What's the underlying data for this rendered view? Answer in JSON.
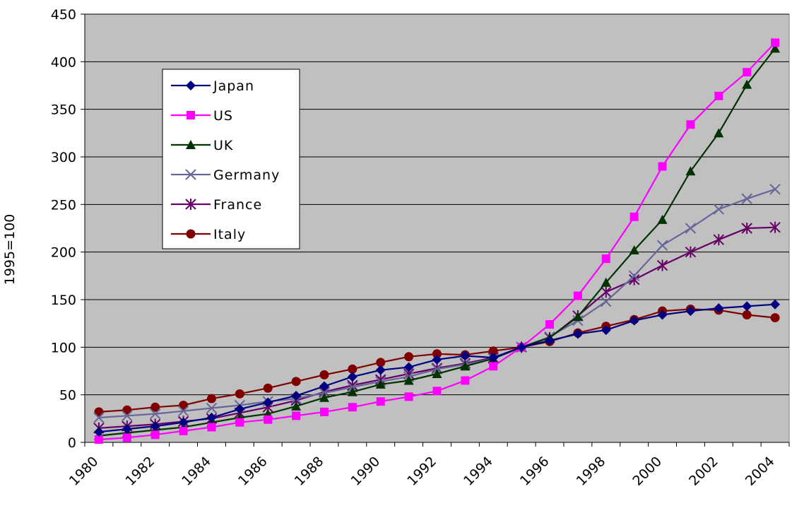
{
  "chart_data": {
    "type": "line",
    "ylabel": "1995=100",
    "xlabel": "",
    "title": "",
    "ylim": [
      0,
      450
    ],
    "ytick_step": 50,
    "grid": true,
    "legend_placement": "upper-left",
    "plot_background": "#C0C0C0",
    "x": [
      1980,
      1981,
      1982,
      1983,
      1984,
      1985,
      1986,
      1987,
      1988,
      1989,
      1990,
      1991,
      1992,
      1993,
      1994,
      1995,
      1996,
      1997,
      1998,
      1999,
      2000,
      2001,
      2002,
      2003,
      2004
    ],
    "x_tick_labels": [
      "1980",
      "1982",
      "1984",
      "1986",
      "1988",
      "1990",
      "1992",
      "1994",
      "1996",
      "1998",
      "2000",
      "2002",
      "2004"
    ],
    "series": [
      {
        "name": "Japan",
        "color": "#000080",
        "marker": "diamond",
        "values": [
          11,
          14,
          17,
          21,
          26,
          35,
          42,
          49,
          59,
          69,
          76,
          79,
          87,
          91,
          89,
          100,
          107,
          114,
          118,
          128,
          134,
          138,
          141,
          143,
          145
        ]
      },
      {
        "name": "US",
        "color": "#FF00FF",
        "marker": "square",
        "values": [
          3,
          5,
          8,
          12,
          16,
          21,
          24,
          28,
          32,
          37,
          43,
          48,
          54,
          65,
          80,
          100,
          124,
          154,
          193,
          237,
          290,
          334,
          364,
          389,
          420
        ]
      },
      {
        "name": "UK",
        "color": "#003300",
        "marker": "triangle",
        "values": [
          7,
          10,
          13,
          16,
          21,
          26,
          30,
          38,
          47,
          53,
          61,
          65,
          72,
          80,
          88,
          100,
          110,
          132,
          168,
          202,
          234,
          285,
          325,
          376,
          414
        ]
      },
      {
        "name": "Germany",
        "color": "#666699",
        "marker": "x",
        "values": [
          26,
          28,
          30,
          33,
          36,
          39,
          43,
          46,
          52,
          58,
          64,
          69,
          77,
          82,
          88,
          100,
          111,
          128,
          148,
          175,
          207,
          225,
          245,
          256,
          266
        ]
      },
      {
        "name": "France",
        "color": "#660066",
        "marker": "star",
        "values": [
          15,
          17,
          19,
          22,
          25,
          31,
          37,
          44,
          53,
          60,
          66,
          72,
          78,
          83,
          89,
          100,
          110,
          133,
          158,
          171,
          186,
          200,
          213,
          225,
          226
        ]
      },
      {
        "name": "Italy",
        "color": "#800000",
        "marker": "circle",
        "values": [
          32,
          34,
          37,
          39,
          46,
          51,
          57,
          64,
          71,
          77,
          84,
          90,
          93,
          92,
          96,
          100,
          106,
          115,
          122,
          129,
          138,
          140,
          139,
          134,
          131
        ]
      }
    ]
  }
}
